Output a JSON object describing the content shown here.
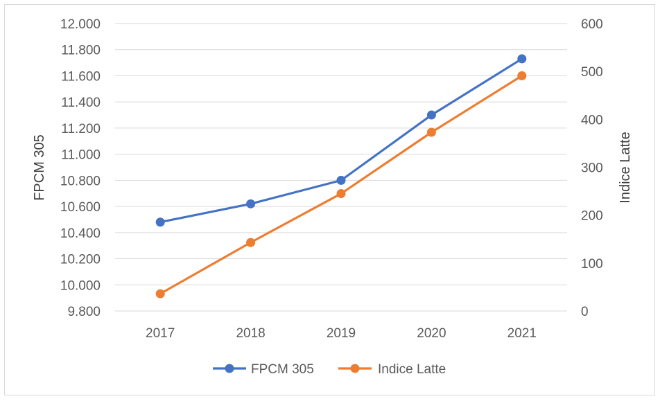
{
  "chart_data": {
    "type": "line",
    "title": "",
    "categories": [
      "2017",
      "2018",
      "2019",
      "2020",
      "2021"
    ],
    "series": [
      {
        "name": "FPCM 305",
        "axis": "left",
        "color": "#4472c4",
        "values": [
          10480,
          10620,
          10800,
          11300,
          11730
        ]
      },
      {
        "name": "Indice Latte",
        "axis": "right",
        "color": "#ed7d31",
        "values": [
          36,
          143,
          245,
          373,
          491
        ]
      }
    ],
    "ylabel_left": "FPCM 305",
    "ylabel_right": "Indice Latte",
    "ylim_left": [
      9800,
      12000
    ],
    "ylim_right": [
      0,
      600
    ],
    "yticks_left": [
      "9.800",
      "10.000",
      "10.200",
      "10.400",
      "10.600",
      "10.800",
      "11.000",
      "11.200",
      "11.400",
      "11.600",
      "11.800",
      "12.000"
    ],
    "yticks_right": [
      "0",
      "100",
      "200",
      "300",
      "400",
      "500",
      "600"
    ],
    "grid": true,
    "legend_position": "bottom"
  }
}
